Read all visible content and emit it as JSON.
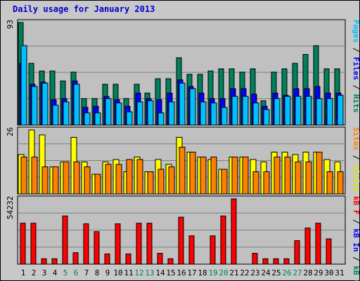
{
  "title": "Daily usage for January 2013",
  "colors": {
    "hits": "#00805c",
    "files": "#0000ff",
    "pages": "#00c0ff",
    "visits": "#ffff00",
    "sites": "#ff8000",
    "kb_in": "#ff0000",
    "kb_out": "#00805c",
    "weekday": "#000000",
    "weekend": "#00805c",
    "panel": "#c0c0c0",
    "grid": "#808080"
  },
  "chart_data": [
    {
      "type": "bar",
      "panel": "hits-files-pages",
      "max_label": "93",
      "ylim": [
        0,
        93
      ],
      "categories": [
        "1",
        "2",
        "3",
        "4",
        "5",
        "6",
        "7",
        "8",
        "9",
        "10",
        "11",
        "12",
        "13",
        "14",
        "15",
        "16",
        "17",
        "18",
        "19",
        "20",
        "21",
        "22",
        "23",
        "24",
        "25",
        "26",
        "27",
        "28",
        "29",
        "30",
        "31"
      ],
      "series": [
        {
          "name": "Hits",
          "values": [
            93,
            56,
            49,
            49,
            40,
            48,
            24,
            24,
            37,
            37,
            24,
            37,
            29,
            42,
            42,
            61,
            46,
            46,
            49,
            51,
            51,
            48,
            51,
            22,
            48,
            51,
            56,
            64,
            72,
            51,
            51
          ]
        },
        {
          "name": "Files",
          "values": [
            56,
            37,
            39,
            23,
            24,
            40,
            16,
            17,
            26,
            23,
            17,
            29,
            24,
            23,
            29,
            41,
            35,
            29,
            24,
            24,
            33,
            33,
            28,
            17,
            29,
            27,
            33,
            33,
            35,
            29,
            29
          ]
        },
        {
          "name": "Pages",
          "values": [
            72,
            35,
            38,
            18,
            21,
            37,
            11,
            11,
            24,
            20,
            12,
            21,
            22,
            11,
            21,
            38,
            33,
            21,
            20,
            16,
            26,
            26,
            20,
            14,
            24,
            26,
            26,
            26,
            24,
            24,
            27
          ]
        }
      ],
      "axis_label_parts": [
        "Pages",
        "Files",
        "Hits"
      ]
    },
    {
      "type": "bar",
      "panel": "visits-sites",
      "max_label": "26",
      "ylim": [
        0,
        26
      ],
      "categories": [
        "1",
        "2",
        "3",
        "4",
        "5",
        "6",
        "7",
        "8",
        "9",
        "10",
        "11",
        "12",
        "13",
        "14",
        "15",
        "16",
        "17",
        "18",
        "19",
        "20",
        "21",
        "22",
        "23",
        "24",
        "25",
        "26",
        "27",
        "28",
        "29",
        "30",
        "31"
      ],
      "series": [
        {
          "name": "Visits",
          "values": [
            16,
            26,
            24,
            11,
            13,
            23,
            13,
            8,
            13,
            14,
            9,
            15,
            9,
            14,
            12,
            23,
            17,
            15,
            14,
            10,
            15,
            15,
            14,
            13,
            17,
            17,
            16,
            17,
            17,
            14,
            13
          ]
        },
        {
          "name": "Sites",
          "values": [
            15,
            15,
            11,
            11,
            13,
            13,
            11,
            8,
            12,
            12,
            14,
            14,
            9,
            10,
            11,
            19,
            17,
            15,
            15,
            10,
            15,
            15,
            9,
            9,
            15,
            15,
            13,
            13,
            17,
            9,
            9
          ]
        }
      ],
      "axis_label_parts": [
        "Sites",
        "Visits"
      ]
    },
    {
      "type": "bar",
      "panel": "kbin-kbout-kbf",
      "max_label": "54232",
      "ylim": [
        0,
        54232
      ],
      "categories": [
        "1",
        "2",
        "3",
        "4",
        "5",
        "6",
        "7",
        "8",
        "9",
        "10",
        "11",
        "12",
        "13",
        "14",
        "15",
        "16",
        "17",
        "18",
        "19",
        "20",
        "21",
        "22",
        "23",
        "24",
        "25",
        "26",
        "27",
        "28",
        "29",
        "30",
        "31"
      ],
      "series": [
        {
          "name": "kB F",
          "values": [
            34000,
            34000,
            4500,
            4500,
            40000,
            9500,
            33500,
            27000,
            8500,
            33500,
            8500,
            34000,
            34000,
            9000,
            4500,
            39000,
            23500,
            0,
            23500,
            40000,
            54232,
            0,
            9000,
            4500,
            4500,
            4500,
            19500,
            30000,
            34000,
            21000,
            0
          ]
        }
      ],
      "axis_label_parts": [
        "kB F",
        "kB In",
        "kB Out"
      ]
    }
  ],
  "weekend_days": [
    "5",
    "6",
    "12",
    "13",
    "19",
    "20",
    "26",
    "27"
  ]
}
